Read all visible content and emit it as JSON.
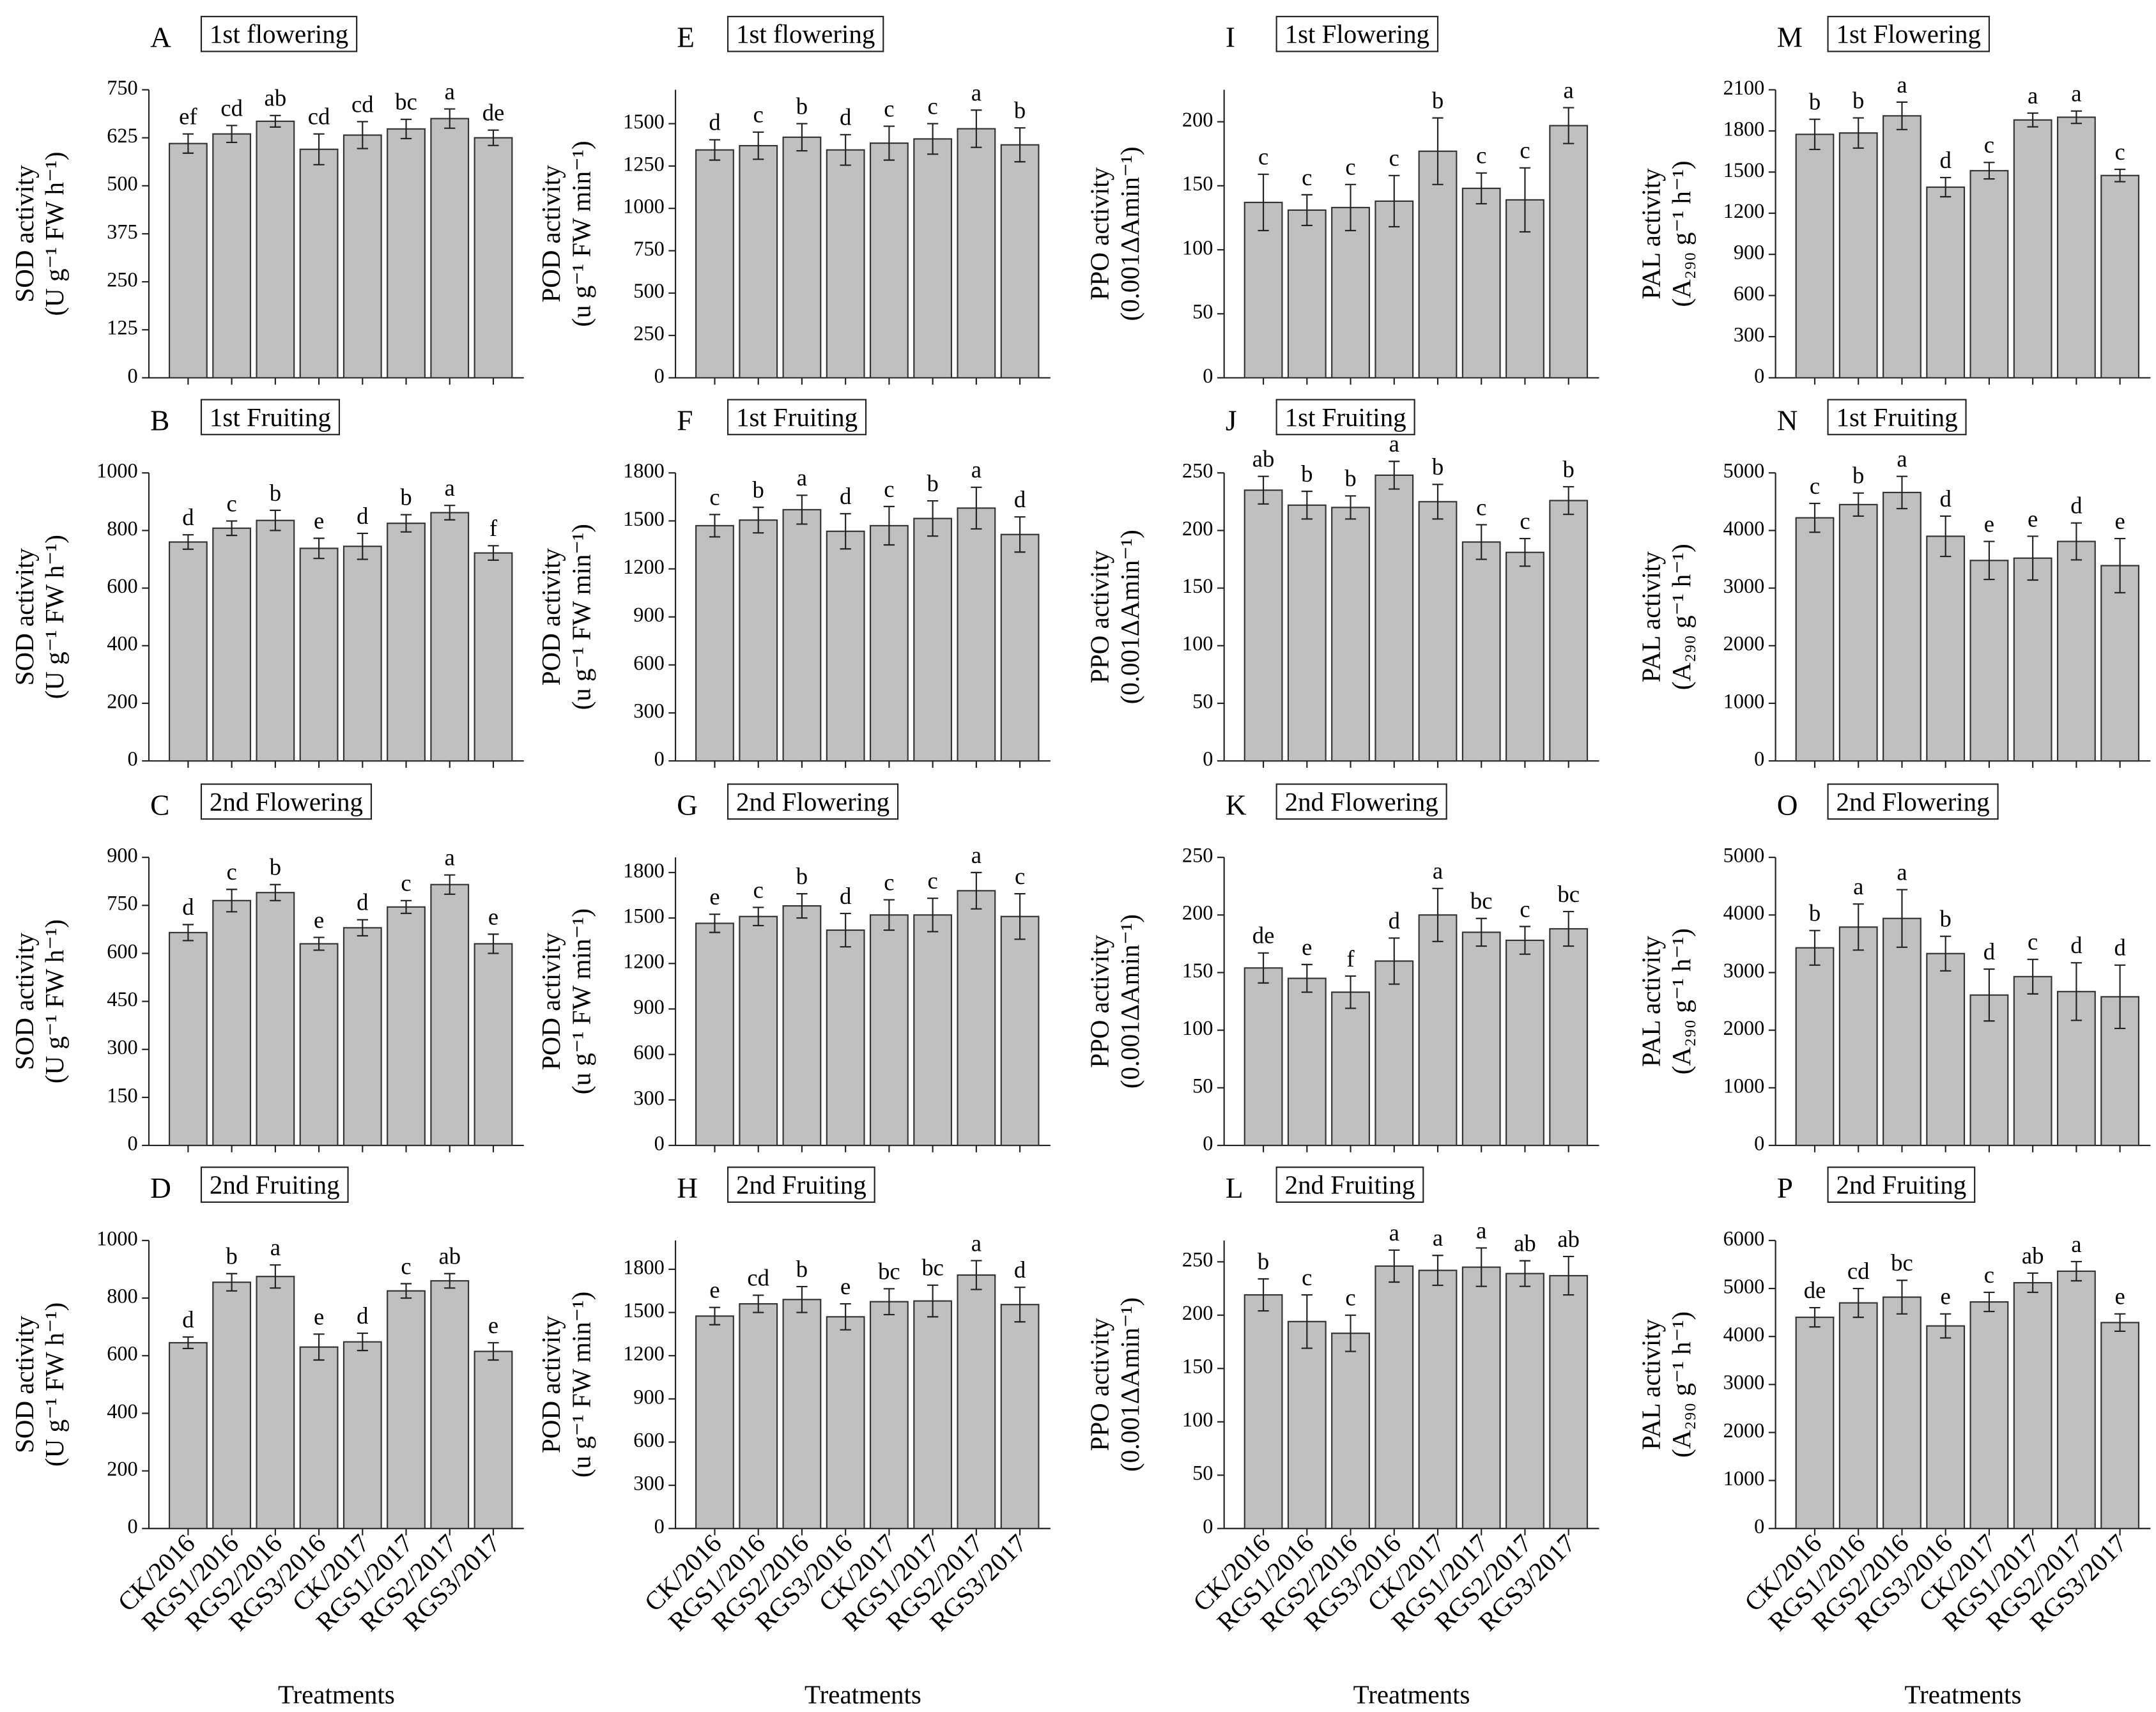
{
  "chart_data": [
    {
      "type": "bar",
      "panel": "A",
      "title": "1st flowering",
      "ylabel": "SOD activity",
      "yunit": "(U g⁻¹ FW h⁻¹)",
      "categories": [
        null,
        null,
        null,
        null,
        null,
        null,
        null,
        null
      ],
      "values": [
        610,
        635,
        668,
        595,
        632,
        648,
        675,
        625
      ],
      "errors": [
        25,
        22,
        15,
        40,
        35,
        25,
        25,
        20
      ],
      "letters": [
        "ef",
        "cd",
        "ab",
        "cd",
        "cd",
        "bc",
        "a",
        "de"
      ],
      "ylim": [
        0,
        750
      ],
      "yticks": [
        0,
        125,
        250,
        375,
        500,
        625,
        750
      ],
      "color": "#c0c0c0"
    },
    {
      "type": "bar",
      "panel": "B",
      "title": "1st Fruiting",
      "ylabel": "SOD activity",
      "yunit": "(U g⁻¹ FW h⁻¹)",
      "categories": [
        null,
        null,
        null,
        null,
        null,
        null,
        null,
        null
      ],
      "values": [
        760,
        808,
        835,
        738,
        745,
        825,
        862,
        722
      ],
      "errors": [
        25,
        25,
        35,
        35,
        45,
        30,
        25,
        25
      ],
      "letters": [
        "d",
        "c",
        "b",
        "e",
        "d",
        "b",
        "a",
        "f"
      ],
      "ylim": [
        0,
        1000
      ],
      "yticks": [
        0,
        200,
        400,
        600,
        800,
        1000
      ],
      "color": "#c0c0c0"
    },
    {
      "type": "bar",
      "panel": "C",
      "title": "2nd Flowering",
      "ylabel": "SOD activity",
      "yunit": "(U g⁻¹ FW h⁻¹)",
      "categories": [
        null,
        null,
        null,
        null,
        null,
        null,
        null,
        null
      ],
      "values": [
        665,
        765,
        790,
        630,
        680,
        745,
        815,
        630
      ],
      "errors": [
        25,
        35,
        25,
        20,
        25,
        20,
        30,
        30
      ],
      "letters": [
        "d",
        "c",
        "b",
        "e",
        "d",
        "c",
        "a",
        "e"
      ],
      "ylim": [
        0,
        900
      ],
      "yticks": [
        0,
        150,
        300,
        450,
        600,
        750,
        900
      ],
      "color": "#c0c0c0"
    },
    {
      "type": "bar",
      "panel": "D",
      "title": "2nd Fruiting",
      "ylabel": "SOD activity",
      "yunit": "(U g⁻¹ FW h⁻¹)",
      "xlabel": "Treatments",
      "categories": [
        "CK/2016",
        "RGS1/2016",
        "RGS2/2016",
        "RGS3/2016",
        "CK/2017",
        "RGS1/2017",
        "RGS2/2017",
        "RGS3/2017"
      ],
      "values": [
        645,
        855,
        875,
        630,
        648,
        825,
        860,
        615
      ],
      "errors": [
        20,
        30,
        40,
        45,
        30,
        25,
        25,
        30
      ],
      "letters": [
        "d",
        "b",
        "a",
        "e",
        "d",
        "c",
        "ab",
        "e"
      ],
      "ylim": [
        0,
        1000
      ],
      "yticks": [
        0,
        200,
        400,
        600,
        800,
        1000
      ],
      "color": "#c0c0c0"
    },
    {
      "type": "bar",
      "panel": "E",
      "title": "1st flowering",
      "ylabel": "POD activity",
      "yunit": "(u g⁻¹ FW min⁻¹)",
      "categories": [
        null,
        null,
        null,
        null,
        null,
        null,
        null,
        null
      ],
      "values": [
        1345,
        1370,
        1420,
        1345,
        1385,
        1410,
        1470,
        1375
      ],
      "errors": [
        60,
        80,
        80,
        90,
        100,
        90,
        110,
        100
      ],
      "letters": [
        "d",
        "c",
        "b",
        "d",
        "c",
        "c",
        "a",
        "b"
      ],
      "ylim": [
        0,
        1700
      ],
      "yticks": [
        0,
        250,
        500,
        750,
        1000,
        1250,
        1500
      ],
      "color": "#c0c0c0"
    },
    {
      "type": "bar",
      "panel": "F",
      "title": "1st Fruiting",
      "ylabel": "POD activity",
      "yunit": "(u g⁻¹ FW min⁻¹)",
      "categories": [
        null,
        null,
        null,
        null,
        null,
        null,
        null,
        null
      ],
      "values": [
        1470,
        1505,
        1570,
        1435,
        1470,
        1515,
        1580,
        1415
      ],
      "errors": [
        70,
        80,
        90,
        110,
        120,
        110,
        130,
        110
      ],
      "letters": [
        "c",
        "b",
        "a",
        "d",
        "c",
        "b",
        "a",
        "d"
      ],
      "ylim": [
        0,
        1800
      ],
      "yticks": [
        0,
        300,
        600,
        900,
        1200,
        1500,
        1800
      ],
      "color": "#c0c0c0"
    },
    {
      "type": "bar",
      "panel": "G",
      "title": "2nd Flowering",
      "ylabel": "POD activity",
      "yunit": "(u g⁻¹ FW min⁻¹)",
      "categories": [
        null,
        null,
        null,
        null,
        null,
        null,
        null,
        null
      ],
      "values": [
        1465,
        1510,
        1580,
        1420,
        1520,
        1520,
        1680,
        1510
      ],
      "errors": [
        60,
        60,
        80,
        110,
        100,
        110,
        120,
        150
      ],
      "letters": [
        "e",
        "c",
        "b",
        "d",
        "c",
        "c",
        "a",
        "c"
      ],
      "ylim": [
        0,
        1900
      ],
      "yticks": [
        0,
        300,
        600,
        900,
        1200,
        1500,
        1800
      ],
      "color": "#c0c0c0"
    },
    {
      "type": "bar",
      "panel": "H",
      "title": "2nd Fruiting",
      "ylabel": "POD activity",
      "yunit": "(u g⁻¹ FW min⁻¹)",
      "xlabel": "Treatments",
      "categories": [
        "CK/2016",
        "RGS1/2016",
        "RGS2/2016",
        "RGS3/2016",
        "CK/2017",
        "RGS1/2017",
        "RGS2/2017",
        "RGS3/2017"
      ],
      "values": [
        1475,
        1560,
        1590,
        1470,
        1575,
        1580,
        1760,
        1555
      ],
      "errors": [
        60,
        60,
        90,
        90,
        90,
        110,
        100,
        120
      ],
      "letters": [
        "e",
        "cd",
        "b",
        "e",
        "bc",
        "bc",
        "a",
        "d"
      ],
      "ylim": [
        0,
        2000
      ],
      "yticks": [
        0,
        300,
        600,
        900,
        1200,
        1500,
        1800
      ],
      "color": "#c0c0c0"
    },
    {
      "type": "bar",
      "panel": "I",
      "title": "1st Flowering",
      "ylabel": "PPO activity",
      "yunit": "(0.001ΔAmin⁻¹)",
      "categories": [
        null,
        null,
        null,
        null,
        null,
        null,
        null,
        null
      ],
      "values": [
        137,
        131,
        133,
        138,
        177,
        148,
        139,
        197
      ],
      "errors": [
        22,
        12,
        18,
        20,
        26,
        12,
        25,
        14
      ],
      "letters": [
        "c",
        "c",
        "c",
        "c",
        "b",
        "c",
        "c",
        "a"
      ],
      "ylim": [
        0,
        225
      ],
      "yticks": [
        0,
        50,
        100,
        150,
        200
      ],
      "color": "#c0c0c0"
    },
    {
      "type": "bar",
      "panel": "J",
      "title": "1st Fruiting",
      "ylabel": "PPO activity",
      "yunit": "(0.001ΔAmin⁻¹)",
      "categories": [
        null,
        null,
        null,
        null,
        null,
        null,
        null,
        null
      ],
      "values": [
        235,
        222,
        220,
        248,
        225,
        190,
        181,
        226
      ],
      "errors": [
        12,
        12,
        10,
        12,
        15,
        15,
        12,
        12
      ],
      "letters": [
        "ab",
        "b",
        "b",
        "a",
        "b",
        "c",
        "c",
        "b"
      ],
      "ylim": [
        0,
        250
      ],
      "yticks": [
        0,
        50,
        100,
        150,
        200,
        250
      ],
      "color": "#c0c0c0"
    },
    {
      "type": "bar",
      "panel": "K",
      "title": "2nd Flowering",
      "ylabel": "PPO activity",
      "yunit": "(0.001ΔAmin⁻¹)",
      "categories": [
        null,
        null,
        null,
        null,
        null,
        null,
        null,
        null
      ],
      "values": [
        154,
        145,
        133,
        160,
        200,
        185,
        178,
        188
      ],
      "errors": [
        13,
        12,
        14,
        20,
        23,
        12,
        12,
        15
      ],
      "letters": [
        "de",
        "e",
        "f",
        "d",
        "a",
        "bc",
        "c",
        "bc"
      ],
      "ylim": [
        0,
        250
      ],
      "yticks": [
        0,
        50,
        100,
        150,
        200,
        250
      ],
      "color": "#c0c0c0"
    },
    {
      "type": "bar",
      "panel": "L",
      "title": "2nd Fruiting",
      "ylabel": "PPO activity",
      "yunit": "(0.001ΔAmin⁻¹)",
      "xlabel": "Treatments",
      "categories": [
        "CK/2016",
        "RGS1/2016",
        "RGS2/2016",
        "RGS3/2016",
        "CK/2017",
        "RGS1/2017",
        "RGS2/2017",
        "RGS3/2017"
      ],
      "values": [
        219,
        194,
        183,
        246,
        242,
        245,
        239,
        237
      ],
      "errors": [
        15,
        25,
        17,
        15,
        14,
        18,
        12,
        18
      ],
      "letters": [
        "b",
        "c",
        "c",
        "a",
        "a",
        "a",
        "ab",
        "ab"
      ],
      "ylim": [
        0,
        270
      ],
      "yticks": [
        0,
        50,
        100,
        150,
        200,
        250
      ],
      "color": "#c0c0c0"
    },
    {
      "type": "bar",
      "panel": "M",
      "title": "1st Flowering",
      "ylabel": "PAL activity",
      "yunit": "(A₂₉₀ g⁻¹ h⁻¹)",
      "categories": [
        null,
        null,
        null,
        null,
        null,
        null,
        null,
        null
      ],
      "values": [
        1775,
        1785,
        1910,
        1390,
        1510,
        1880,
        1900,
        1475
      ],
      "errors": [
        110,
        110,
        100,
        70,
        60,
        50,
        45,
        45
      ],
      "letters": [
        "b",
        "b",
        "a",
        "d",
        "c",
        "a",
        "a",
        "c"
      ],
      "ylim": [
        0,
        2100
      ],
      "yticks": [
        0,
        300,
        600,
        900,
        1200,
        1500,
        1800,
        2100
      ],
      "color": "#c0c0c0"
    },
    {
      "type": "bar",
      "panel": "N",
      "title": "1st Fruiting",
      "ylabel": "PAL activity",
      "yunit": "(A₂₉₀ g⁻¹ h⁻¹)",
      "categories": [
        null,
        null,
        null,
        null,
        null,
        null,
        null,
        null
      ],
      "values": [
        4220,
        4450,
        4660,
        3900,
        3480,
        3520,
        3810,
        3390
      ],
      "errors": [
        250,
        200,
        280,
        350,
        330,
        380,
        320,
        470
      ],
      "letters": [
        "c",
        "b",
        "a",
        "d",
        "e",
        "e",
        "d",
        "e"
      ],
      "ylim": [
        0,
        5000
      ],
      "yticks": [
        0,
        1000,
        2000,
        3000,
        4000,
        5000
      ],
      "color": "#c0c0c0"
    },
    {
      "type": "bar",
      "panel": "O",
      "title": "2nd Flowering",
      "ylabel": "PAL activity",
      "yunit": "(A₂₉₀ g⁻¹ h⁻¹)",
      "categories": [
        null,
        null,
        null,
        null,
        null,
        null,
        null,
        null
      ],
      "values": [
        3430,
        3790,
        3940,
        3330,
        2610,
        2930,
        2670,
        2580
      ],
      "errors": [
        300,
        400,
        500,
        300,
        450,
        300,
        500,
        550
      ],
      "letters": [
        "b",
        "a",
        "a",
        "b",
        "d",
        "c",
        "d",
        "d"
      ],
      "ylim": [
        0,
        5000
      ],
      "yticks": [
        0,
        1000,
        2000,
        3000,
        4000,
        5000
      ],
      "color": "#c0c0c0"
    },
    {
      "type": "bar",
      "panel": "P",
      "title": "2nd Fruiting",
      "ylabel": "PAL activity",
      "yunit": "(A₂₉₀ g⁻¹ h⁻¹)",
      "xlabel": "Treatments",
      "categories": [
        "CK/2016",
        "RGS1/2016",
        "RGS2/2016",
        "RGS3/2016",
        "CK/2017",
        "RGS1/2017",
        "RGS2/2017",
        "RGS3/2017"
      ],
      "values": [
        4400,
        4700,
        4820,
        4220,
        4720,
        5120,
        5360,
        4290
      ],
      "errors": [
        200,
        300,
        350,
        250,
        200,
        200,
        200,
        180
      ],
      "letters": [
        "de",
        "cd",
        "bc",
        "e",
        "c",
        "ab",
        "a",
        "e"
      ],
      "ylim": [
        0,
        6000
      ],
      "yticks": [
        0,
        1000,
        2000,
        3000,
        4000,
        5000,
        6000
      ],
      "color": "#c0c0c0"
    }
  ]
}
